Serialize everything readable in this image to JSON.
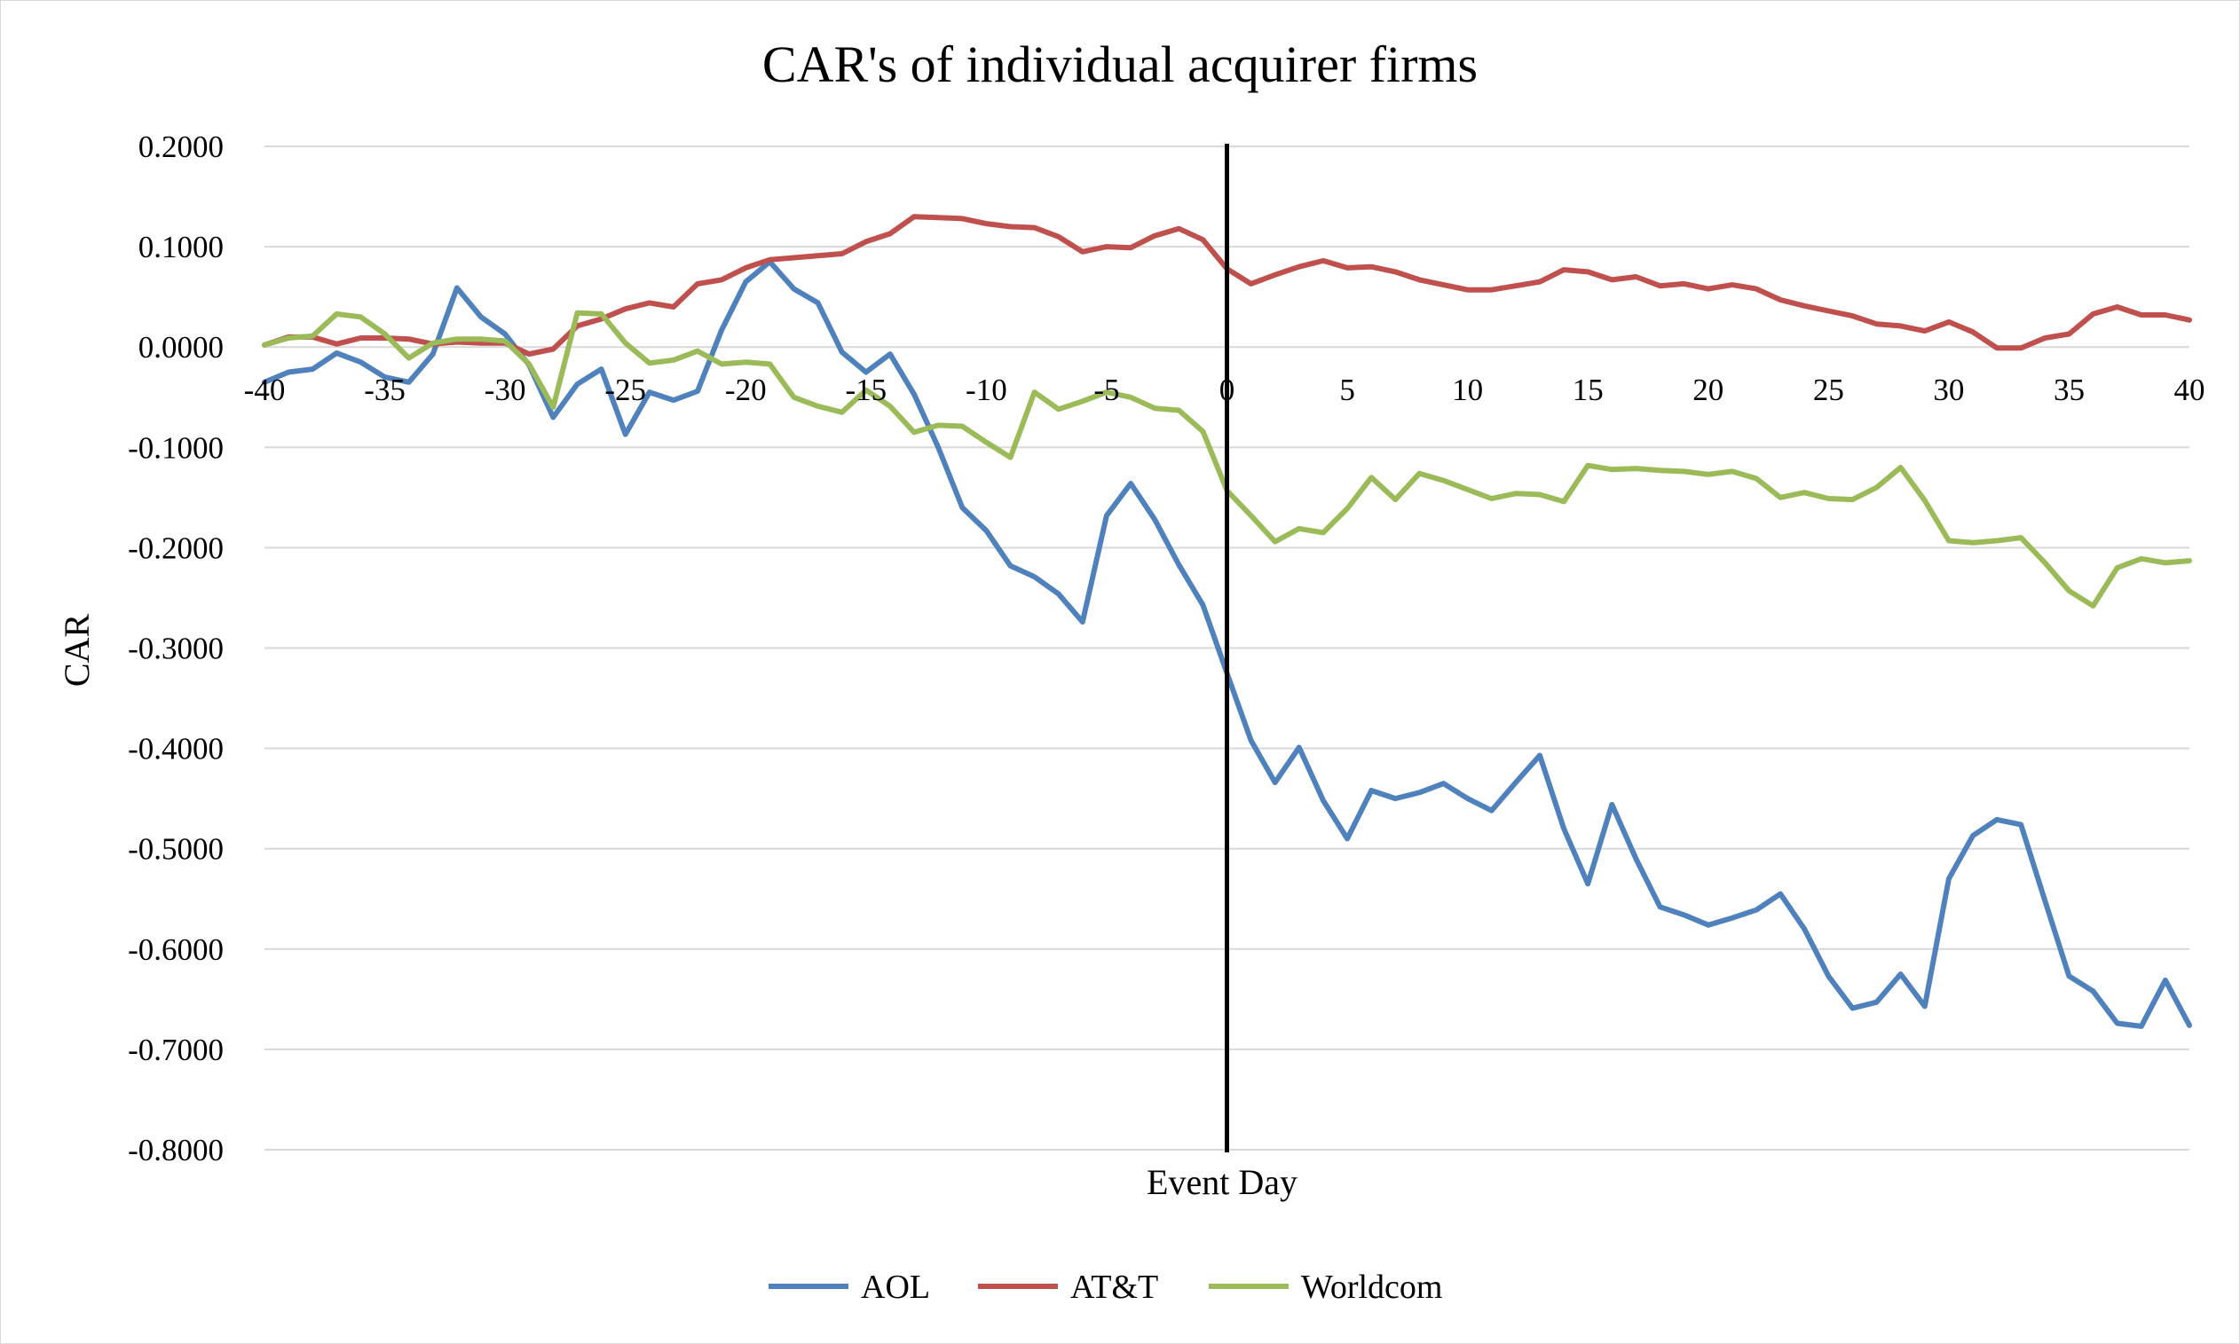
{
  "chart_data": {
    "type": "line",
    "title": "CAR's of individual acquirer firms",
    "xlabel": "Event Day",
    "ylabel": "CAR",
    "xlim": [
      -40,
      40
    ],
    "ylim": [
      -0.8,
      0.2
    ],
    "x_ticks": [
      "-40",
      "-35",
      "-30",
      "-25",
      "-20",
      "-15",
      "-10",
      "-5",
      "0",
      "5",
      "10",
      "15",
      "20",
      "25",
      "30",
      "35",
      "40"
    ],
    "y_ticks": [
      "0.2000",
      "0.1000",
      "0.0000",
      "-0.1000",
      "-0.2000",
      "-0.3000",
      "-0.4000",
      "-0.5000",
      "-0.6000",
      "-0.7000",
      "-0.8000"
    ],
    "grid": "horizontal",
    "event_line_x": 0,
    "legend_position": "bottom",
    "x": [
      -40,
      -39,
      -38,
      -37,
      -36,
      -35,
      -34,
      -33,
      -32,
      -31,
      -30,
      -29,
      -28,
      -27,
      -26,
      -25,
      -24,
      -23,
      -22,
      -21,
      -20,
      -19,
      -18,
      -17,
      -16,
      -15,
      -14,
      -13,
      -12,
      -11,
      -10,
      -9,
      -8,
      -7,
      -6,
      -5,
      -4,
      -3,
      -2,
      -1,
      0,
      1,
      2,
      3,
      4,
      5,
      6,
      7,
      8,
      9,
      10,
      11,
      12,
      13,
      14,
      15,
      16,
      17,
      18,
      19,
      20,
      21,
      22,
      23,
      24,
      25,
      26,
      27,
      28,
      29,
      30,
      31,
      32,
      33,
      34,
      35,
      36,
      37,
      38,
      39,
      40
    ],
    "series": [
      {
        "name": "AOL",
        "color": "#4f81bd",
        "values": [
          -0.035,
          -0.025,
          -0.022,
          -0.006,
          -0.015,
          -0.03,
          -0.035,
          -0.007,
          0.059,
          0.03,
          0.013,
          -0.018,
          -0.07,
          -0.037,
          -0.022,
          -0.087,
          -0.045,
          -0.053,
          -0.044,
          0.017,
          0.065,
          0.085,
          0.058,
          0.044,
          -0.005,
          -0.025,
          -0.007,
          -0.047,
          -0.1,
          -0.16,
          -0.183,
          -0.218,
          -0.229,
          -0.246,
          -0.274,
          -0.168,
          -0.136,
          -0.172,
          -0.217,
          -0.257,
          -0.325,
          -0.392,
          -0.434,
          -0.399,
          -0.452,
          -0.49,
          -0.442,
          -0.45,
          -0.444,
          -0.435,
          -0.45,
          -0.462,
          -0.434,
          -0.407,
          -0.48,
          -0.535,
          -0.456,
          -0.51,
          -0.558,
          -0.566,
          -0.576,
          -0.569,
          -0.561,
          -0.545,
          -0.58,
          -0.627,
          -0.659,
          -0.653,
          -0.625,
          -0.657,
          -0.53,
          -0.487,
          -0.471,
          -0.476,
          -0.552,
          -0.627,
          -0.642,
          -0.674,
          -0.677,
          -0.631,
          -0.676
        ]
      },
      {
        "name": "AT&T",
        "color": "#c0504d",
        "values": [
          0.002,
          0.01,
          0.01,
          0.003,
          0.009,
          0.009,
          0.008,
          0.003,
          0.005,
          0.004,
          0.004,
          -0.007,
          -0.002,
          0.021,
          0.028,
          0.038,
          0.044,
          0.04,
          0.063,
          0.067,
          0.079,
          0.087,
          0.089,
          0.091,
          0.093,
          0.105,
          0.113,
          0.13,
          0.129,
          0.128,
          0.123,
          0.12,
          0.119,
          0.11,
          0.095,
          0.1,
          0.099,
          0.111,
          0.118,
          0.107,
          0.078,
          0.063,
          0.072,
          0.08,
          0.086,
          0.079,
          0.08,
          0.075,
          0.067,
          0.062,
          0.057,
          0.057,
          0.061,
          0.065,
          0.077,
          0.075,
          0.067,
          0.07,
          0.061,
          0.063,
          0.058,
          0.062,
          0.058,
          0.047,
          0.041,
          0.036,
          0.031,
          0.023,
          0.021,
          0.016,
          0.025,
          0.015,
          -0.001,
          -0.001,
          0.009,
          0.013,
          0.033,
          0.04,
          0.032,
          0.032,
          0.027
        ]
      },
      {
        "name": "Worldcom",
        "color": "#9bbb59",
        "values": [
          0.002,
          0.009,
          0.011,
          0.033,
          0.03,
          0.013,
          -0.011,
          0.004,
          0.008,
          0.008,
          0.006,
          -0.017,
          -0.06,
          0.034,
          0.033,
          0.004,
          -0.016,
          -0.013,
          -0.004,
          -0.017,
          -0.015,
          -0.017,
          -0.05,
          -0.059,
          -0.065,
          -0.043,
          -0.059,
          -0.085,
          -0.078,
          -0.079,
          -0.095,
          -0.11,
          -0.045,
          -0.062,
          -0.054,
          -0.045,
          -0.05,
          -0.061,
          -0.063,
          -0.084,
          -0.143,
          -0.168,
          -0.194,
          -0.181,
          -0.185,
          -0.161,
          -0.13,
          -0.152,
          -0.126,
          -0.133,
          -0.142,
          -0.151,
          -0.146,
          -0.147,
          -0.154,
          -0.118,
          -0.122,
          -0.121,
          -0.123,
          -0.124,
          -0.127,
          -0.124,
          -0.131,
          -0.15,
          -0.145,
          -0.151,
          -0.152,
          -0.14,
          -0.12,
          -0.153,
          -0.193,
          -0.195,
          -0.193,
          -0.19,
          -0.215,
          -0.243,
          -0.258,
          -0.22,
          -0.211,
          -0.215,
          -0.213
        ]
      }
    ]
  }
}
